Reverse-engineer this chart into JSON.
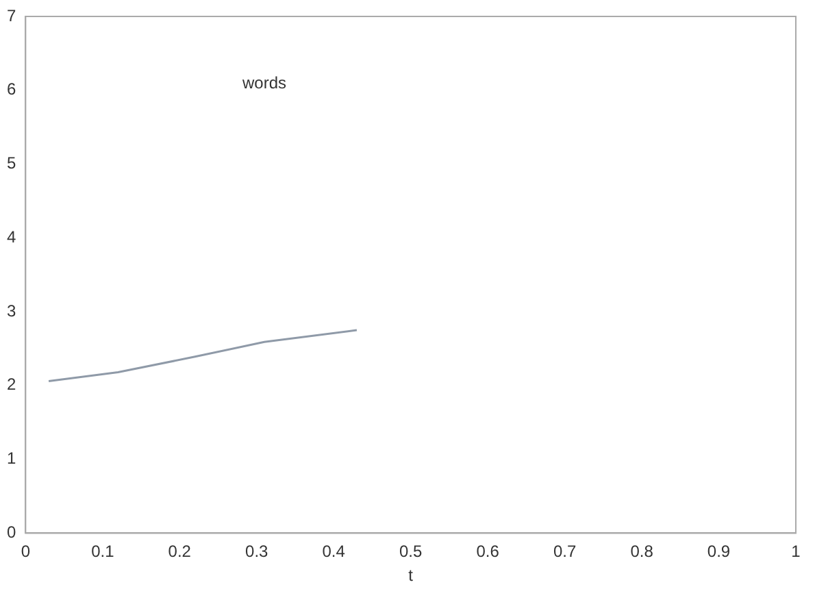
{
  "chart_data": {
    "type": "line",
    "xlabel": "t",
    "series": [
      {
        "color": "#8f9aa8",
        "x": [
          0.03,
          0.12,
          0.22,
          0.31,
          0.43
        ],
        "values": [
          2.06,
          2.18,
          2.39,
          2.59,
          2.75
        ]
      }
    ],
    "xlim": [
      0,
      1
    ],
    "xticks": [
      0,
      0.1,
      0.2,
      0.3,
      0.4,
      0.5,
      0.6,
      0.7,
      0.8,
      0.9,
      1
    ],
    "ylim": [
      0,
      7
    ],
    "yticks": [
      0,
      1,
      2,
      3,
      4,
      5,
      6,
      7
    ],
    "annotations": [
      "words"
    ],
    "marker": "none",
    "line_style": "solid",
    "grid": false,
    "legend": false
  }
}
